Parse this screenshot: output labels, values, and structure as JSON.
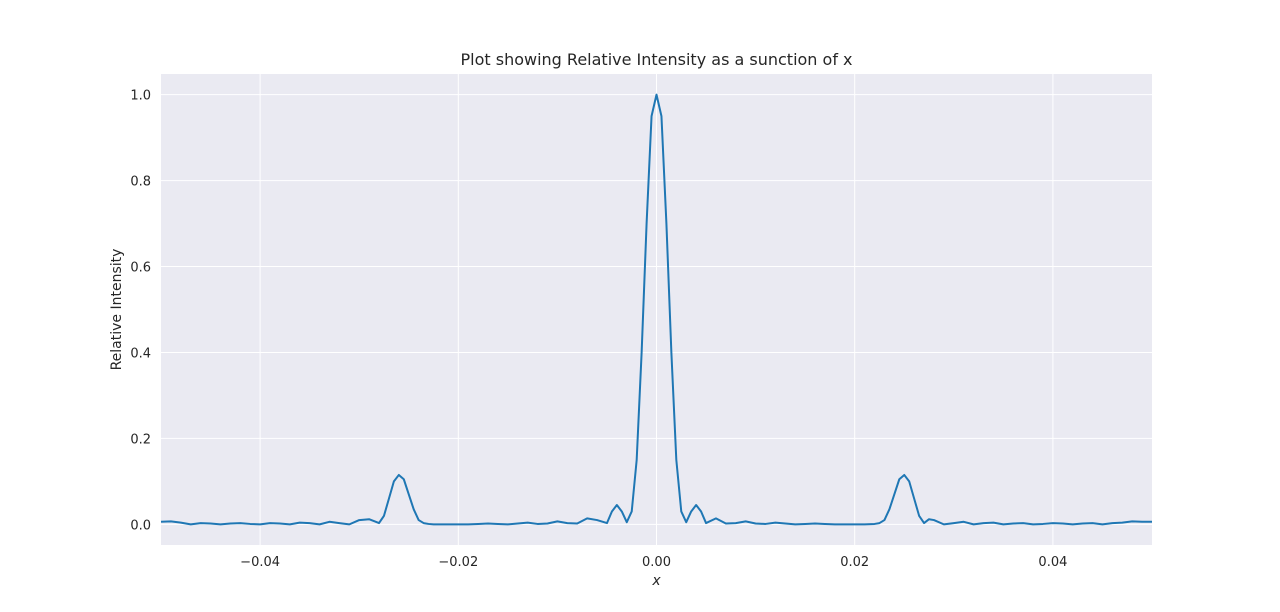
{
  "chart_data": {
    "type": "line",
    "title": "Plot showing Relative Intensity as a sunction of x",
    "xlabel": "x",
    "ylabel": "Relative Intensity",
    "xlim": [
      -0.05,
      0.05
    ],
    "ylim": [
      -0.048,
      1.048
    ],
    "xticks": [
      -0.04,
      -0.02,
      0.0,
      0.02,
      0.04
    ],
    "xtick_labels": [
      "−0.04",
      "−0.02",
      "0.00",
      "0.02",
      "0.04"
    ],
    "yticks": [
      0.0,
      0.2,
      0.4,
      0.6,
      0.8,
      1.0
    ],
    "ytick_labels": [
      "0.0",
      "0.2",
      "0.4",
      "0.6",
      "0.8",
      "1.0"
    ],
    "grid": true,
    "series": [
      {
        "x": [
          -0.05,
          -0.049,
          -0.048,
          -0.047,
          -0.046,
          -0.045,
          -0.044,
          -0.043,
          -0.042,
          -0.041,
          -0.04,
          -0.039,
          -0.038,
          -0.037,
          -0.036,
          -0.035,
          -0.034,
          -0.033,
          -0.032,
          -0.031,
          -0.03,
          -0.029,
          -0.028,
          -0.0275,
          -0.027,
          -0.0265,
          -0.026,
          -0.0255,
          -0.025,
          -0.0245,
          -0.024,
          -0.0235,
          -0.023,
          -0.0225,
          -0.022,
          -0.021,
          -0.02,
          -0.019,
          -0.018,
          -0.017,
          -0.016,
          -0.015,
          -0.014,
          -0.013,
          -0.012,
          -0.011,
          -0.01,
          -0.009,
          -0.008,
          -0.007,
          -0.006,
          -0.005,
          -0.0045,
          -0.004,
          -0.0035,
          -0.003,
          -0.0025,
          -0.002,
          -0.0015,
          -0.001,
          -0.0005,
          0.0,
          0.0005,
          0.001,
          0.0015,
          0.002,
          0.0025,
          0.003,
          0.0035,
          0.004,
          0.0045,
          0.005,
          0.006,
          0.007,
          0.008,
          0.009,
          0.01,
          0.011,
          0.012,
          0.013,
          0.014,
          0.015,
          0.016,
          0.017,
          0.018,
          0.019,
          0.02,
          0.021,
          0.022,
          0.0225,
          0.023,
          0.0235,
          0.024,
          0.0245,
          0.025,
          0.0255,
          0.026,
          0.0265,
          0.027,
          0.0275,
          0.028,
          0.029,
          0.03,
          0.031,
          0.032,
          0.033,
          0.034,
          0.035,
          0.036,
          0.037,
          0.038,
          0.039,
          0.04,
          0.041,
          0.042,
          0.043,
          0.044,
          0.045,
          0.046,
          0.047,
          0.048,
          0.049,
          0.05
        ],
        "y": [
          0.006,
          0.007,
          0.004,
          0.0,
          0.003,
          0.002,
          0.0,
          0.002,
          0.003,
          0.001,
          0.0,
          0.003,
          0.002,
          0.0,
          0.004,
          0.003,
          0.0,
          0.006,
          0.003,
          0.0,
          0.01,
          0.012,
          0.003,
          0.02,
          0.06,
          0.1,
          0.115,
          0.105,
          0.07,
          0.035,
          0.01,
          0.003,
          0.001,
          0.0,
          0.0,
          0.0,
          0.0,
          0.0,
          0.001,
          0.002,
          0.001,
          0.0,
          0.002,
          0.004,
          0.001,
          0.002,
          0.007,
          0.003,
          0.002,
          0.014,
          0.01,
          0.003,
          0.03,
          0.045,
          0.03,
          0.005,
          0.03,
          0.15,
          0.4,
          0.7,
          0.95,
          1.0,
          0.95,
          0.7,
          0.4,
          0.15,
          0.03,
          0.005,
          0.03,
          0.045,
          0.03,
          0.003,
          0.014,
          0.002,
          0.003,
          0.007,
          0.002,
          0.001,
          0.004,
          0.002,
          0.0,
          0.001,
          0.002,
          0.001,
          0.0,
          0.0,
          0.0,
          0.0,
          0.001,
          0.003,
          0.01,
          0.035,
          0.07,
          0.105,
          0.115,
          0.1,
          0.06,
          0.02,
          0.003,
          0.012,
          0.01,
          0.0,
          0.003,
          0.006,
          0.0,
          0.003,
          0.004,
          0.0,
          0.002,
          0.003,
          0.0,
          0.001,
          0.003,
          0.002,
          0.0,
          0.002,
          0.003,
          0.0,
          0.003,
          0.004,
          0.007,
          0.006,
          0.006
        ]
      }
    ],
    "colors": {
      "line": "#1f77b4",
      "plot_background": "#eaeaf2",
      "grid": "#ffffff",
      "text": "#262626"
    }
  }
}
